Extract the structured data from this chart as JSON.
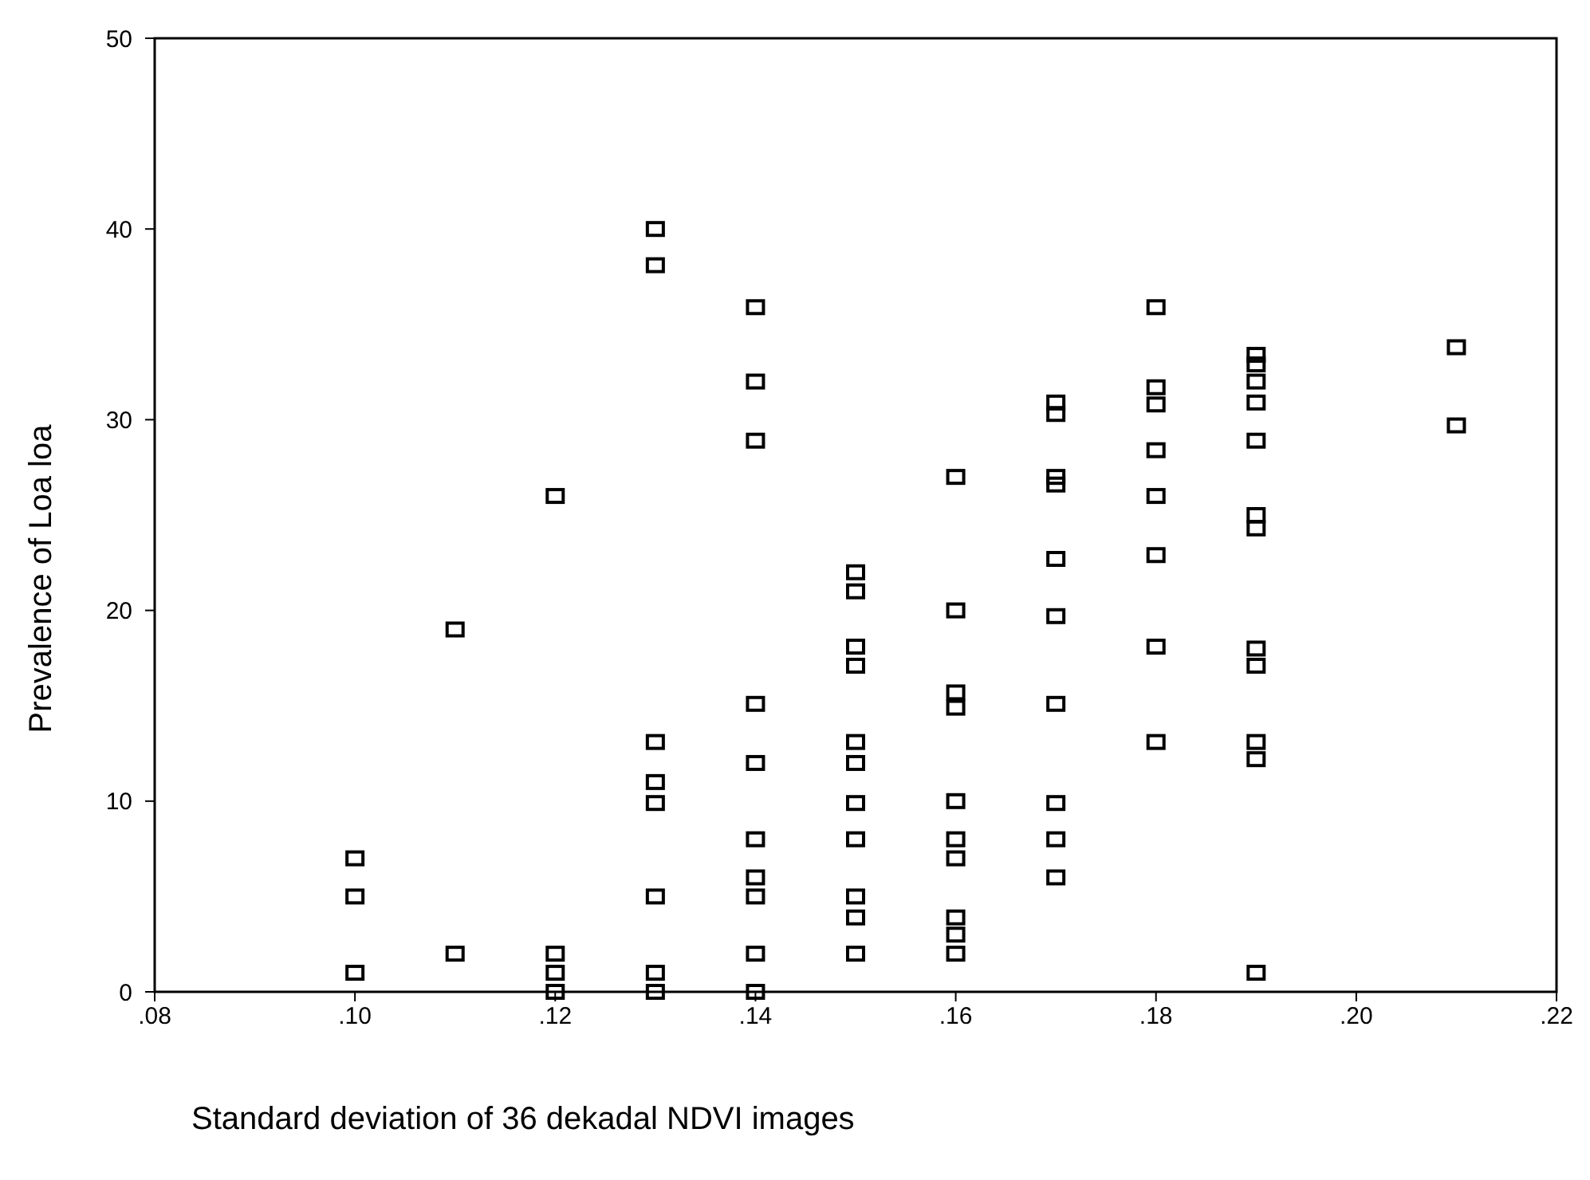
{
  "chart_data": {
    "type": "scatter",
    "xlabel": "Standard deviation of 36 dekadal NDVI images",
    "ylabel": "Prevalence of Loa loa",
    "marker": "square",
    "grid": false,
    "xlim": [
      0.08,
      0.22
    ],
    "ylim": [
      0,
      50
    ],
    "xticks": [
      {
        "value": 0.08,
        "label": ".08"
      },
      {
        "value": 0.1,
        "label": ".10"
      },
      {
        "value": 0.12,
        "label": ".12"
      },
      {
        "value": 0.14,
        "label": ".14"
      },
      {
        "value": 0.16,
        "label": ".16"
      },
      {
        "value": 0.18,
        "label": ".18"
      },
      {
        "value": 0.2,
        "label": ".20"
      },
      {
        "value": 0.22,
        "label": ".22"
      }
    ],
    "yticks": [
      0,
      10,
      20,
      30,
      40,
      50
    ],
    "series": [
      {
        "color": "#000000",
        "x": [
          0.1,
          0.1,
          0.1,
          0.11,
          0.11,
          0.12,
          0.12,
          0.12,
          0.12,
          0.13,
          0.13,
          0.13,
          0.13,
          0.13,
          0.13,
          0.13,
          0.13,
          0.14,
          0.14,
          0.14,
          0.14,
          0.14,
          0.14,
          0.14,
          0.14,
          0.14,
          0.14,
          0.15,
          0.15,
          0.15,
          0.15,
          0.15,
          0.15,
          0.15,
          0.15,
          0.15,
          0.15,
          0.15,
          0.16,
          0.16,
          0.16,
          0.16,
          0.16,
          0.16,
          0.16,
          0.16,
          0.16,
          0.16,
          0.17,
          0.17,
          0.17,
          0.17,
          0.17,
          0.17,
          0.17,
          0.17,
          0.17,
          0.17,
          0.18,
          0.18,
          0.18,
          0.18,
          0.18,
          0.18,
          0.18,
          0.18,
          0.19,
          0.19,
          0.19,
          0.19,
          0.19,
          0.19,
          0.19,
          0.19,
          0.19,
          0.19,
          0.19,
          0.19,
          0.21,
          0.21
        ],
        "values": [
          7,
          5,
          1,
          19,
          2,
          26,
          2,
          1,
          0,
          40,
          38.1,
          13.1,
          11,
          9.9,
          5,
          1,
          0,
          35.9,
          32,
          28.9,
          15.1,
          12,
          8,
          6,
          5,
          2,
          0,
          22,
          21,
          18.1,
          17.1,
          13.1,
          12,
          9.9,
          8,
          5,
          3.9,
          2,
          27,
          20,
          15.7,
          14.9,
          10,
          8,
          7,
          3.9,
          3,
          2,
          30.9,
          30.3,
          27,
          26.6,
          22.7,
          19.7,
          15.1,
          9.9,
          8,
          6,
          35.9,
          31.7,
          30.8,
          28.4,
          26,
          22.9,
          18.1,
          13.1,
          33.4,
          32.9,
          32,
          30.9,
          28.9,
          25,
          24.3,
          18,
          17.1,
          13.1,
          12.2,
          1,
          33.8,
          29.7
        ]
      }
    ]
  }
}
